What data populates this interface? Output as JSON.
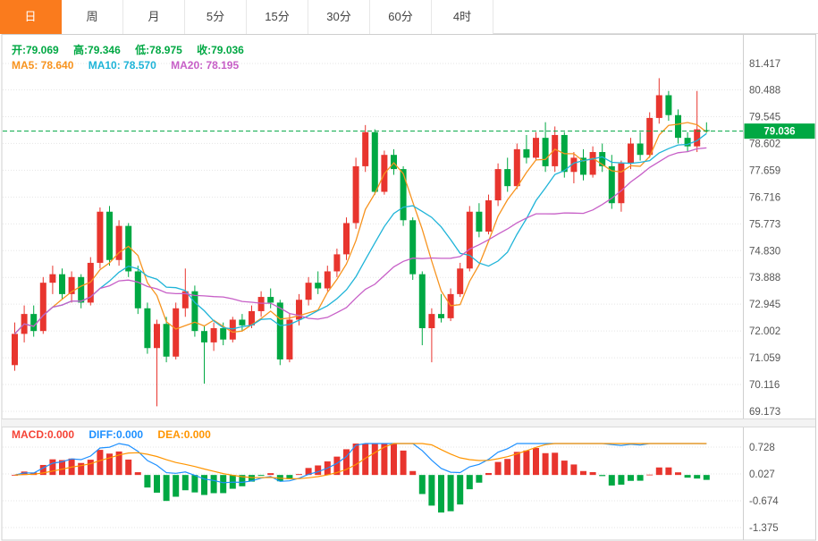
{
  "tabs": {
    "items": [
      {
        "label": "日",
        "active": true
      },
      {
        "label": "周",
        "active": false
      },
      {
        "label": "月",
        "active": false
      },
      {
        "label": "5分",
        "active": false
      },
      {
        "label": "15分",
        "active": false
      },
      {
        "label": "30分",
        "active": false
      },
      {
        "label": "60分",
        "active": false
      },
      {
        "label": "4时",
        "active": false
      }
    ]
  },
  "info": {
    "ohlc": [
      {
        "text": "开:79.069"
      },
      {
        "text": "高:79.346"
      },
      {
        "text": "低:78.975"
      },
      {
        "text": "收:79.036"
      }
    ],
    "ma": [
      {
        "text": "MA5: 78.640"
      },
      {
        "text": "MA10: 78.570"
      },
      {
        "text": "MA20: 78.195"
      }
    ],
    "macd": [
      {
        "text": "MACD:0.000"
      },
      {
        "text": "DIFF:0.000"
      },
      {
        "text": "DEA:0.000"
      }
    ]
  },
  "colors": {
    "up": "#e8352e",
    "down": "#00a843",
    "ma5": "#f7931e",
    "ma10": "#1fb4d8",
    "ma20": "#c75fc7",
    "diff": "#1e90ff",
    "dea": "#ff9500",
    "price_line": "#00a843",
    "tab_active": "#fa7b1d",
    "axis_text": "#555555",
    "grid": "#e5e5e5"
  },
  "axis": {
    "price_labels": [
      "81.417",
      "80.488",
      "79.545",
      "78.602",
      "77.659",
      "76.716",
      "75.773",
      "74.830",
      "73.888",
      "72.945",
      "72.002",
      "71.059",
      "70.116",
      "69.173"
    ],
    "macd_labels": [
      "0.728",
      "0.027",
      "-0.674",
      "-1.375"
    ],
    "price_tag": "79.036"
  },
  "chart_data": {
    "type": "candlestick",
    "title": "日K线 (daily candlestick with MA5/MA10/MA20 and MACD)",
    "convention": "red = up, green = down",
    "price_range": {
      "min": 69.173,
      "max": 81.417
    },
    "macd_range": {
      "min": -1.375,
      "max": 0.728
    },
    "last_values": {
      "open": 79.069,
      "high": 79.346,
      "low": 78.975,
      "close": 79.036,
      "ma5": 78.64,
      "ma10": 78.57,
      "ma20": 78.195,
      "macd": 0.0,
      "diff": 0.0,
      "dea": 0.0
    },
    "indicators": {
      "ma_periods": [
        5,
        10,
        20
      ],
      "macd_params": [
        12,
        26,
        9
      ]
    },
    "candles": [
      [
        70.8,
        72.3,
        70.6,
        71.9
      ],
      [
        71.9,
        72.9,
        71.6,
        72.6
      ],
      [
        72.6,
        72.9,
        71.8,
        72.0
      ],
      [
        72.0,
        73.9,
        71.9,
        73.7
      ],
      [
        73.7,
        74.3,
        73.3,
        74.0
      ],
      [
        74.0,
        74.2,
        73.1,
        73.3
      ],
      [
        73.3,
        74.1,
        73.0,
        73.9
      ],
      [
        73.9,
        74.0,
        72.8,
        73.0
      ],
      [
        73.0,
        74.6,
        72.9,
        74.4
      ],
      [
        74.4,
        76.35,
        74.2,
        76.2
      ],
      [
        76.2,
        76.4,
        74.3,
        74.5
      ],
      [
        74.5,
        75.9,
        74.3,
        75.7
      ],
      [
        75.7,
        75.8,
        73.9,
        74.1
      ],
      [
        74.1,
        74.3,
        72.6,
        72.8
      ],
      [
        72.8,
        73.0,
        71.2,
        71.4
      ],
      [
        71.4,
        72.4,
        69.35,
        72.25
      ],
      [
        72.25,
        72.5,
        70.9,
        71.1
      ],
      [
        71.1,
        73.0,
        71.0,
        72.8
      ],
      [
        72.8,
        74.2,
        72.5,
        73.4
      ],
      [
        73.4,
        73.6,
        71.8,
        72.0
      ],
      [
        72.0,
        72.2,
        70.15,
        71.6
      ],
      [
        71.6,
        72.3,
        71.3,
        72.1
      ],
      [
        72.1,
        72.3,
        71.5,
        71.7
      ],
      [
        71.7,
        72.5,
        71.6,
        72.4
      ],
      [
        72.4,
        72.6,
        72.0,
        72.2
      ],
      [
        72.2,
        72.9,
        72.1,
        72.7
      ],
      [
        72.7,
        73.4,
        72.5,
        73.2
      ],
      [
        73.2,
        73.5,
        72.8,
        73.0
      ],
      [
        73.0,
        73.1,
        70.8,
        71.0
      ],
      [
        71.0,
        72.6,
        70.9,
        72.4
      ],
      [
        72.4,
        73.3,
        72.2,
        73.1
      ],
      [
        73.1,
        73.9,
        72.9,
        73.7
      ],
      [
        73.7,
        74.1,
        73.3,
        73.5
      ],
      [
        73.5,
        74.3,
        73.4,
        74.1
      ],
      [
        74.1,
        74.9,
        73.9,
        74.7
      ],
      [
        74.7,
        76.0,
        74.5,
        75.8
      ],
      [
        75.8,
        78.1,
        75.6,
        77.8
      ],
      [
        77.8,
        79.25,
        77.6,
        79.0
      ],
      [
        79.0,
        79.1,
        76.8,
        76.9
      ],
      [
        76.9,
        78.35,
        76.8,
        78.2
      ],
      [
        78.2,
        78.4,
        77.5,
        77.7
      ],
      [
        77.7,
        77.8,
        75.7,
        75.9
      ],
      [
        75.9,
        76.0,
        73.8,
        74.0
      ],
      [
        74.0,
        74.1,
        71.5,
        72.1
      ],
      [
        72.1,
        72.8,
        70.9,
        72.6
      ],
      [
        72.6,
        73.3,
        72.3,
        72.45
      ],
      [
        72.45,
        73.5,
        72.35,
        73.3
      ],
      [
        73.3,
        74.4,
        73.2,
        74.2
      ],
      [
        74.2,
        76.4,
        74.1,
        76.2
      ],
      [
        76.2,
        76.5,
        75.3,
        75.5
      ],
      [
        75.5,
        76.8,
        75.4,
        76.6
      ],
      [
        76.6,
        77.9,
        76.4,
        77.7
      ],
      [
        77.7,
        78.1,
        76.9,
        77.1
      ],
      [
        77.1,
        78.6,
        77.0,
        78.4
      ],
      [
        78.4,
        78.9,
        77.9,
        78.1
      ],
      [
        78.1,
        79.0,
        78.0,
        78.8
      ],
      [
        78.8,
        79.35,
        77.6,
        77.8
      ],
      [
        77.8,
        79.2,
        77.6,
        78.9
      ],
      [
        78.9,
        79.0,
        77.4,
        77.6
      ],
      [
        77.6,
        78.3,
        77.2,
        78.1
      ],
      [
        78.1,
        78.4,
        77.3,
        77.5
      ],
      [
        77.5,
        78.5,
        77.4,
        78.3
      ],
      [
        78.3,
        78.6,
        77.6,
        77.8
      ],
      [
        77.8,
        78.2,
        76.3,
        76.5
      ],
      [
        76.5,
        78.0,
        76.2,
        77.9
      ],
      [
        77.9,
        78.8,
        77.7,
        78.6
      ],
      [
        78.6,
        79.0,
        78.0,
        78.2
      ],
      [
        78.2,
        79.7,
        78.1,
        79.5
      ],
      [
        79.5,
        80.9,
        79.3,
        80.3
      ],
      [
        80.3,
        80.45,
        79.4,
        79.6
      ],
      [
        79.6,
        79.8,
        78.6,
        78.8
      ],
      [
        78.8,
        79.0,
        78.3,
        78.5
      ],
      [
        78.5,
        80.45,
        78.3,
        79.1
      ],
      [
        79.069,
        79.346,
        78.975,
        79.036
      ]
    ]
  }
}
